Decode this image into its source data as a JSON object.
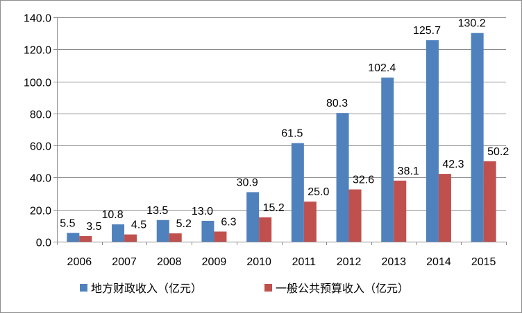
{
  "chart_data": {
    "type": "bar",
    "categories": [
      "2006",
      "2007",
      "2008",
      "2009",
      "2010",
      "2011",
      "2012",
      "2013",
      "2014",
      "2015"
    ],
    "series": [
      {
        "name": "地方财政收入（亿元）",
        "values": [
          5.5,
          10.8,
          13.5,
          13.0,
          30.9,
          61.5,
          80.3,
          102.4,
          125.7,
          130.2
        ],
        "labels": [
          "5.5",
          "10.8",
          "13.5",
          "13.0",
          "30.9",
          "61.5",
          "80.3",
          "102.4",
          "125.7",
          "130.2"
        ],
        "color": "#4f81bd"
      },
      {
        "name": "一般公共预算收入（亿元）",
        "values": [
          3.5,
          4.5,
          5.2,
          6.3,
          15.2,
          25.0,
          32.6,
          38.1,
          42.3,
          50.2
        ],
        "labels": [
          "3.5",
          "4.5",
          "5.2",
          "6.3",
          "15.2",
          "25.0",
          "32.6",
          "38.1",
          "42.3",
          "50.2"
        ],
        "color": "#c0504d"
      }
    ],
    "yticks": [
      "0.0",
      "20.0",
      "40.0",
      "60.0",
      "80.0",
      "100.0",
      "120.0",
      "140.0"
    ],
    "ylim": [
      0,
      140
    ],
    "grid": true,
    "legend": "bottom",
    "gridColor": "#8c8c8c",
    "axisColor": "#8c8c8c"
  }
}
